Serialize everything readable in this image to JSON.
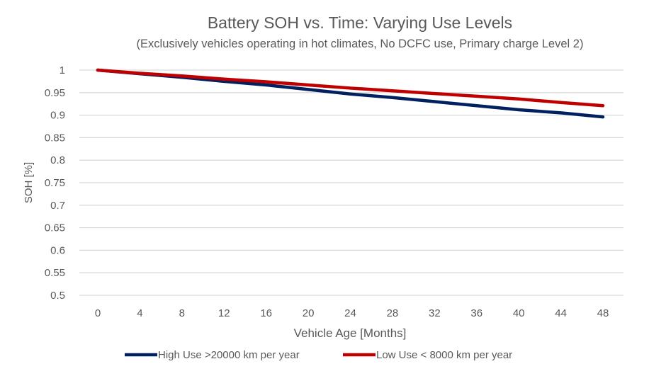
{
  "chart_data": {
    "type": "line",
    "title": "Battery SOH vs. Time: Varying Use Levels",
    "subtitle": "(Exclusively vehicles operating in hot climates, No DCFC use, Primary charge Level 2)",
    "xlabel": "Vehicle Age [Months]",
    "ylabel": "SOH [%]",
    "x": [
      0,
      4,
      8,
      12,
      16,
      20,
      24,
      28,
      32,
      36,
      40,
      44,
      48
    ],
    "xticks": [
      "0",
      "4",
      "8",
      "12",
      "16",
      "20",
      "24",
      "28",
      "32",
      "36",
      "40",
      "44",
      "48"
    ],
    "yticks": [
      "0.5",
      "0.55",
      "0.6",
      "0.65",
      "0.7",
      "0.75",
      "0.8",
      "0.85",
      "0.9",
      "0.95",
      "1"
    ],
    "xlim": [
      0,
      48
    ],
    "ylim": [
      0.5,
      1
    ],
    "grid": true,
    "legend_position": "bottom",
    "series": [
      {
        "name": "High Use >20000 km per year",
        "color": "#002060",
        "values": [
          1,
          0.992,
          0.984,
          0.975,
          0.967,
          0.957,
          0.947,
          0.939,
          0.93,
          0.921,
          0.912,
          0.905,
          0.896
        ]
      },
      {
        "name": "Low Use < 8000 km per year",
        "color": "#C00000",
        "values": [
          1,
          0.993,
          0.987,
          0.98,
          0.974,
          0.967,
          0.96,
          0.954,
          0.948,
          0.942,
          0.936,
          0.928,
          0.921
        ]
      }
    ]
  }
}
